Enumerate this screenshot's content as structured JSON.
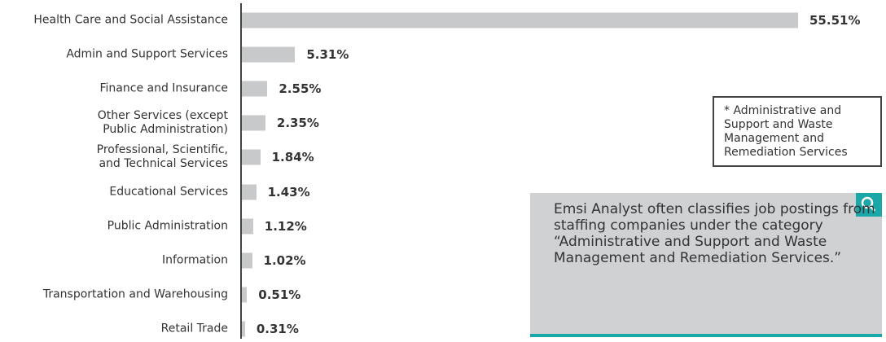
{
  "chart_data": {
    "type": "bar",
    "orientation": "horizontal",
    "categories": [
      "Health Care and Social Assistance",
      "Admin and Support Services",
      "Finance and Insurance",
      "Other Services (except Public Administration)",
      "Professional, Scientific, and Technical Services",
      "Educational Services",
      "Public Administration",
      "Information",
      "Transportation and Warehousing",
      "Retail Trade"
    ],
    "values": [
      55.51,
      5.31,
      2.55,
      2.35,
      1.84,
      1.43,
      1.12,
      1.02,
      0.51,
      0.31
    ],
    "value_labels": [
      "55.51%",
      "5.31%",
      "2.55%",
      "2.35%",
      "1.84%",
      "1.43%",
      "1.12%",
      "1.02%",
      "0.51%",
      "0.31%"
    ],
    "color": "#c8c9cb",
    "annotations": [
      "* Administrative and Support and Waste Management and Remediation Services",
      "Emsi Analyst often classifies job postings from staffing companies under the category “Administrative and Support and Waste Management and Remediation Services.”"
    ]
  }
}
